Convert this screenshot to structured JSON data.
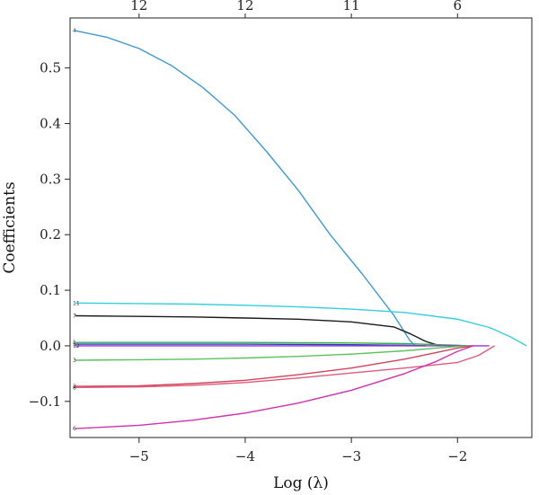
{
  "chart_data": {
    "type": "line",
    "title": "",
    "xlabel": "Log (λ)",
    "ylabel": "Coefficients",
    "xlim": [
      -5.65,
      -1.3
    ],
    "ylim": [
      -0.165,
      0.59
    ],
    "x_ticks": [
      -5,
      -4,
      -3,
      -2
    ],
    "x_tick_labels": [
      "−5",
      "−4",
      "−3",
      "−2"
    ],
    "y_ticks": [
      -0.1,
      0.0,
      0.1,
      0.2,
      0.3,
      0.4,
      0.5
    ],
    "y_tick_labels": [
      "−0.1",
      "0.0",
      "0.1",
      "0.2",
      "0.3",
      "0.4",
      "0.5"
    ],
    "top_axis": {
      "ticks": [
        -5.0,
        -4.0,
        -3.0,
        -2.0
      ],
      "labels": [
        "12",
        "12",
        "11",
        "6"
      ]
    },
    "grid": false,
    "legend": "none",
    "series": [
      {
        "name": "4",
        "color": "#3a9ad9",
        "x": [
          -5.6,
          -5.3,
          -5.0,
          -4.7,
          -4.4,
          -4.1,
          -3.8,
          -3.5,
          -3.2,
          -2.9,
          -2.6,
          -2.45,
          -2.4,
          -2.3
        ],
        "y": [
          0.567,
          0.555,
          0.535,
          0.505,
          0.465,
          0.415,
          0.35,
          0.28,
          0.2,
          0.13,
          0.055,
          0.01,
          0.0,
          0.0
        ]
      },
      {
        "name": "11",
        "color": "#33cfe0",
        "x": [
          -5.6,
          -5.0,
          -4.5,
          -4.0,
          -3.5,
          -3.0,
          -2.5,
          -2.0,
          -1.7,
          -1.5,
          -1.35
        ],
        "y": [
          0.077,
          0.076,
          0.075,
          0.073,
          0.07,
          0.066,
          0.06,
          0.048,
          0.033,
          0.016,
          0.0
        ]
      },
      {
        "name": "7",
        "color": "#1a1a1a",
        "x": [
          -5.6,
          -5.0,
          -4.5,
          -4.0,
          -3.5,
          -3.0,
          -2.6,
          -2.45,
          -2.3,
          -2.2,
          -2.15
        ],
        "y": [
          0.054,
          0.053,
          0.052,
          0.05,
          0.048,
          0.043,
          0.034,
          0.022,
          0.008,
          0.002,
          0.0
        ]
      },
      {
        "name": "1",
        "color": "#2fb34a",
        "x": [
          -5.6,
          -5.0,
          -4.0,
          -3.0,
          -2.5,
          -2.0,
          -1.9
        ],
        "y": [
          0.006,
          0.006,
          0.006,
          0.005,
          0.004,
          0.001,
          0.0
        ]
      },
      {
        "name": "5",
        "color": "#1f3fbf",
        "x": [
          -5.6,
          -5.0,
          -4.0,
          -3.0,
          -2.5,
          -2.3
        ],
        "y": [
          0.003,
          0.003,
          0.003,
          0.002,
          0.001,
          0.0
        ]
      },
      {
        "name": "12",
        "color": "#9b33c9",
        "x": [
          -5.6,
          -5.0,
          -4.0,
          -3.0,
          -2.0,
          -1.7
        ],
        "y": [
          0.0,
          0.0,
          0.0,
          0.0,
          0.0,
          0.0
        ]
      },
      {
        "name": "3",
        "color": "#5cc25c",
        "x": [
          -5.6,
          -5.0,
          -4.5,
          -4.0,
          -3.5,
          -3.0,
          -2.5,
          -2.2,
          -2.0,
          -1.9
        ],
        "y": [
          -0.026,
          -0.025,
          -0.024,
          -0.022,
          -0.019,
          -0.015,
          -0.009,
          -0.004,
          -0.001,
          0.0
        ]
      },
      {
        "name": "2",
        "color": "#d1435b",
        "x": [
          -5.6,
          -5.0,
          -4.5,
          -4.0,
          -3.5,
          -3.0,
          -2.5,
          -2.2,
          -2.0,
          -1.85
        ],
        "y": [
          -0.073,
          -0.072,
          -0.068,
          -0.062,
          -0.052,
          -0.04,
          -0.024,
          -0.012,
          -0.004,
          0.0
        ]
      },
      {
        "name": "8",
        "color": "#e05a7a",
        "x": [
          -5.6,
          -5.0,
          -4.5,
          -4.0,
          -3.5,
          -3.0,
          -2.5,
          -2.0,
          -1.8,
          -1.65
        ],
        "y": [
          -0.075,
          -0.074,
          -0.071,
          -0.066,
          -0.058,
          -0.049,
          -0.04,
          -0.03,
          -0.017,
          0.0
        ]
      },
      {
        "name": "6",
        "color": "#d42fb0",
        "x": [
          -5.6,
          -5.0,
          -4.5,
          -4.0,
          -3.5,
          -3.0,
          -2.5,
          -2.2,
          -2.0,
          -1.85
        ],
        "y": [
          -0.149,
          -0.143,
          -0.134,
          -0.121,
          -0.103,
          -0.08,
          -0.05,
          -0.028,
          -0.01,
          0.0
        ]
      }
    ]
  }
}
